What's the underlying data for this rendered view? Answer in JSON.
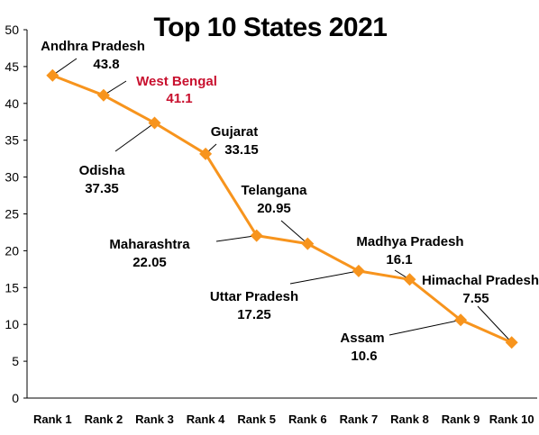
{
  "chart_data": {
    "type": "line",
    "title": "Top 10 States 2021",
    "xlabel": "",
    "ylabel": "",
    "categories": [
      "Rank 1",
      "Rank 2",
      "Rank 3",
      "Rank 4",
      "Rank 5",
      "Rank 6",
      "Rank 7",
      "Rank 8",
      "Rank 9",
      "Rank 10"
    ],
    "y_ticks": [
      "0",
      "5",
      "10",
      "15",
      "20",
      "25",
      "30",
      "35",
      "40",
      "45",
      "50"
    ],
    "ylim": [
      0,
      50
    ],
    "grid": false,
    "series": [
      {
        "values": [
          43.8,
          41.1,
          37.35,
          33.15,
          22.05,
          20.95,
          17.25,
          16.1,
          10.6,
          7.55
        ],
        "color": "#F7941D",
        "marker": "diamond"
      }
    ],
    "annotations": [
      {
        "name": "Andhra Pradesh",
        "value": "43.8",
        "color": "#000000"
      },
      {
        "name": "West Bengal",
        "value": "41.1",
        "color": "#C8102E"
      },
      {
        "name": "Odisha",
        "value": "37.35",
        "color": "#000000"
      },
      {
        "name": "Gujarat",
        "value": "33.15",
        "color": "#000000"
      },
      {
        "name": "Maharashtra",
        "value": "22.05",
        "color": "#000000"
      },
      {
        "name": "Telangana",
        "value": "20.95",
        "color": "#000000"
      },
      {
        "name": "Uttar Pradesh",
        "value": "17.25",
        "color": "#000000"
      },
      {
        "name": "Madhya Pradesh",
        "value": "16.1",
        "color": "#000000"
      },
      {
        "name": "Assam",
        "value": "10.6",
        "color": "#000000"
      },
      {
        "name": "Himachal Pradesh",
        "value": "7.55",
        "color": "#000000"
      }
    ]
  }
}
